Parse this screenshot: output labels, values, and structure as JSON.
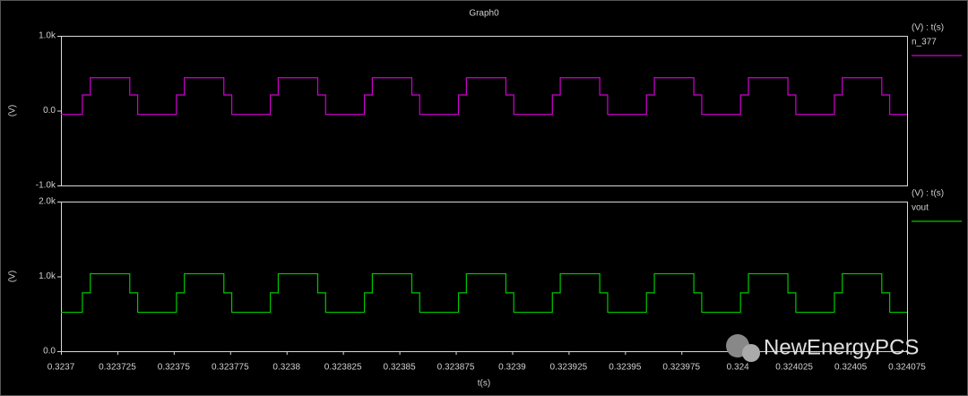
{
  "title": "Graph0",
  "watermark": "NewEnergyPCS",
  "chart_data": [
    {
      "type": "line",
      "ylabel": "(V)",
      "legend_title": "(V) : t(s)",
      "xlim": [
        0.3237,
        0.324075
      ],
      "ylim": [
        -1000,
        1000
      ],
      "yticks": [
        {
          "value": 1000,
          "label": "1.0k"
        },
        {
          "value": 0,
          "label": "0.0"
        },
        {
          "value": -1000,
          "label": "-1.0k"
        }
      ],
      "x": [
        0.3237,
        0.3237095,
        0.3237095,
        0.323713,
        0.323713,
        0.3237305,
        0.3237305,
        0.323734,
        0.323734,
        0.3237512,
        0.3237512,
        0.3237547,
        0.3237547,
        0.3237722,
        0.3237722,
        0.3237757,
        0.3237757,
        0.3237928,
        0.3237928,
        0.3237963,
        0.3237963,
        0.3238138,
        0.3238138,
        0.3238173,
        0.3238173,
        0.3238345,
        0.3238345,
        0.323838,
        0.323838,
        0.3238555,
        0.3238555,
        0.323859,
        0.323859,
        0.3238762,
        0.3238762,
        0.3238797,
        0.3238797,
        0.3238972,
        0.3238972,
        0.3239007,
        0.3239007,
        0.3239178,
        0.3239178,
        0.3239213,
        0.3239213,
        0.3239388,
        0.3239388,
        0.3239423,
        0.3239423,
        0.3239595,
        0.3239595,
        0.323963,
        0.323963,
        0.3239805,
        0.3239805,
        0.323984,
        0.323984,
        0.3240012,
        0.3240012,
        0.3240047,
        0.3240047,
        0.3240222,
        0.3240222,
        0.3240257,
        0.3240257,
        0.3240428,
        0.3240428,
        0.3240463,
        0.3240463,
        0.3240638,
        0.3240638,
        0.3240673,
        0.3240673,
        0.324075
      ],
      "series": [
        {
          "name": "n_377",
          "color": "#d400d4",
          "values": [
            -50,
            -50,
            210,
            210,
            440,
            440,
            210,
            210,
            -50,
            -50,
            210,
            210,
            440,
            440,
            210,
            210,
            -50,
            -50,
            210,
            210,
            440,
            440,
            210,
            210,
            -50,
            -50,
            210,
            210,
            440,
            440,
            210,
            210,
            -50,
            -50,
            210,
            210,
            440,
            440,
            210,
            210,
            -50,
            -50,
            210,
            210,
            440,
            440,
            210,
            210,
            -50,
            -50,
            210,
            210,
            440,
            440,
            210,
            210,
            -50,
            -50,
            210,
            210,
            440,
            440,
            210,
            210,
            -50,
            -50,
            210,
            210,
            440,
            440,
            210,
            210,
            -50,
            -50
          ]
        }
      ]
    },
    {
      "type": "line",
      "ylabel": "(V)",
      "xlabel": "t(s)",
      "legend_title": "(V) : t(s)",
      "xlim": [
        0.3237,
        0.324075
      ],
      "xticks": [
        0.3237,
        0.323725,
        0.32375,
        0.323775,
        0.3238,
        0.323825,
        0.32385,
        0.323875,
        0.3239,
        0.323925,
        0.32395,
        0.323975,
        0.324,
        0.324025,
        0.32405,
        0.324075
      ],
      "ylim": [
        0,
        2000
      ],
      "yticks": [
        {
          "value": 2000,
          "label": "2.0k"
        },
        {
          "value": 1000,
          "label": "1.0k"
        },
        {
          "value": 0,
          "label": "0.0"
        }
      ],
      "x": [
        0.3237,
        0.3237095,
        0.3237095,
        0.323713,
        0.323713,
        0.3237305,
        0.3237305,
        0.323734,
        0.323734,
        0.3237512,
        0.3237512,
        0.3237547,
        0.3237547,
        0.3237722,
        0.3237722,
        0.3237757,
        0.3237757,
        0.3237928,
        0.3237928,
        0.3237963,
        0.3237963,
        0.3238138,
        0.3238138,
        0.3238173,
        0.3238173,
        0.3238345,
        0.3238345,
        0.323838,
        0.323838,
        0.3238555,
        0.3238555,
        0.323859,
        0.323859,
        0.3238762,
        0.3238762,
        0.3238797,
        0.3238797,
        0.3238972,
        0.3238972,
        0.3239007,
        0.3239007,
        0.3239178,
        0.3239178,
        0.3239213,
        0.3239213,
        0.3239388,
        0.3239388,
        0.3239423,
        0.3239423,
        0.3239595,
        0.3239595,
        0.323963,
        0.323963,
        0.3239805,
        0.3239805,
        0.323984,
        0.323984,
        0.3240012,
        0.3240012,
        0.3240047,
        0.3240047,
        0.3240222,
        0.3240222,
        0.3240257,
        0.3240257,
        0.3240428,
        0.3240428,
        0.3240463,
        0.3240463,
        0.3240638,
        0.3240638,
        0.3240673,
        0.3240673,
        0.324075
      ],
      "series": [
        {
          "name": "vout",
          "color": "#00c800",
          "values": [
            520,
            520,
            780,
            780,
            1035,
            1035,
            780,
            780,
            520,
            520,
            780,
            780,
            1035,
            1035,
            780,
            780,
            520,
            520,
            780,
            780,
            1035,
            1035,
            780,
            780,
            520,
            520,
            780,
            780,
            1035,
            1035,
            780,
            780,
            520,
            520,
            780,
            780,
            1035,
            1035,
            780,
            780,
            520,
            520,
            780,
            780,
            1035,
            1035,
            780,
            780,
            520,
            520,
            780,
            780,
            1035,
            1035,
            780,
            780,
            520,
            520,
            780,
            780,
            1035,
            1035,
            780,
            780,
            520,
            520,
            780,
            780,
            1035,
            1035,
            780,
            780,
            520,
            520
          ]
        }
      ]
    }
  ]
}
